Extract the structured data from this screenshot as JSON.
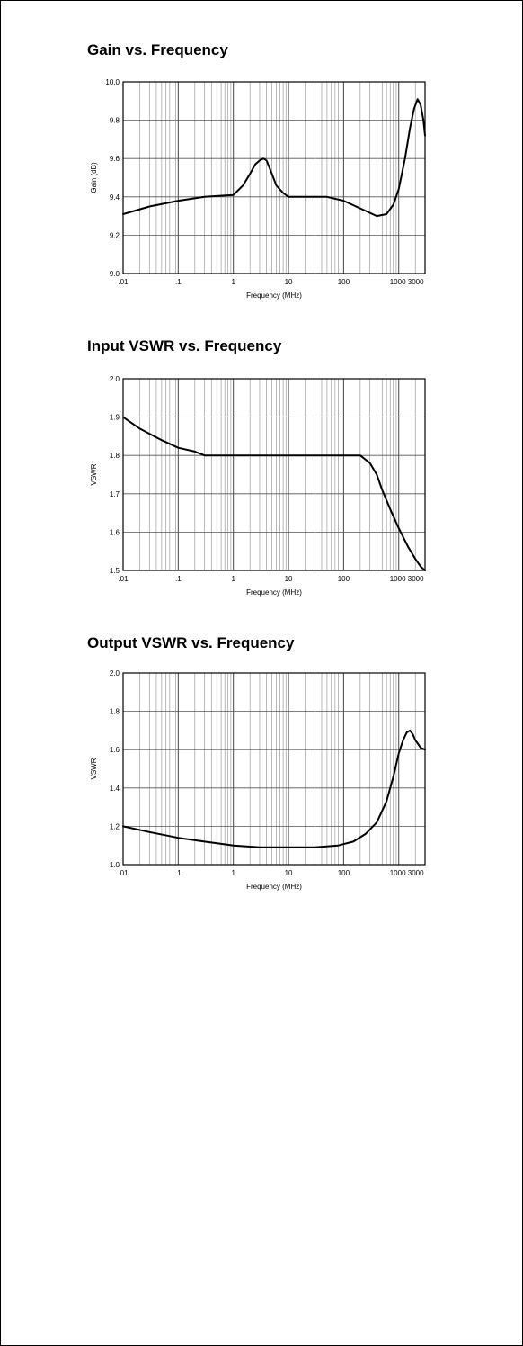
{
  "chart_data": [
    {
      "type": "line",
      "title": "Gain vs. Frequency",
      "xlabel": "Frequency (MHz)",
      "ylabel": "Gain (dB)",
      "xscale": "log",
      "xlim": [
        0.01,
        3000
      ],
      "ylim": [
        9.0,
        10.0
      ],
      "x_tick_labels": [
        ".01",
        ".1",
        "1",
        "10",
        "100",
        "1000 3000"
      ],
      "y_tick_labels": [
        "9.0",
        "9.2",
        "9.4",
        "9.6",
        "9.8",
        "10.0"
      ],
      "grid": true,
      "x": [
        0.01,
        0.03,
        0.1,
        0.3,
        1,
        1.5,
        2,
        2.5,
        3,
        3.5,
        4,
        5,
        6,
        8,
        10,
        20,
        50,
        100,
        200,
        400,
        600,
        800,
        1000,
        1300,
        1600,
        1900,
        2200,
        2500,
        2800,
        3000
      ],
      "y": [
        9.31,
        9.35,
        9.38,
        9.4,
        9.41,
        9.46,
        9.52,
        9.57,
        9.59,
        9.6,
        9.59,
        9.52,
        9.46,
        9.42,
        9.4,
        9.4,
        9.4,
        9.38,
        9.34,
        9.3,
        9.31,
        9.36,
        9.44,
        9.6,
        9.76,
        9.86,
        9.91,
        9.88,
        9.8,
        9.72
      ]
    },
    {
      "type": "line",
      "title": "Input VSWR vs. Frequency",
      "xlabel": "Frequency (MHz)",
      "ylabel": "VSWR",
      "xscale": "log",
      "xlim": [
        0.01,
        3000
      ],
      "ylim": [
        1.5,
        2.0
      ],
      "x_tick_labels": [
        ".01",
        ".1",
        "1",
        "10",
        "100",
        "1000 3000"
      ],
      "y_tick_labels": [
        "1.5",
        "1.6",
        "1.7",
        "1.8",
        "1.9",
        "2.0"
      ],
      "grid": true,
      "x": [
        0.01,
        0.02,
        0.05,
        0.1,
        0.2,
        0.3,
        0.5,
        1,
        10,
        100,
        200,
        300,
        400,
        500,
        700,
        1000,
        1500,
        2000,
        2500,
        3000
      ],
      "y": [
        1.9,
        1.87,
        1.84,
        1.82,
        1.81,
        1.8,
        1.8,
        1.8,
        1.8,
        1.8,
        1.8,
        1.78,
        1.75,
        1.71,
        1.66,
        1.61,
        1.56,
        1.53,
        1.51,
        1.5
      ]
    },
    {
      "type": "line",
      "title": "Output VSWR vs. Frequency",
      "xlabel": "Frequency (MHz)",
      "ylabel": "VSWR",
      "xscale": "log",
      "xlim": [
        0.01,
        3000
      ],
      "ylim": [
        1.0,
        2.0
      ],
      "x_tick_labels": [
        ".01",
        ".1",
        "1",
        "10",
        "100",
        "1000 3000"
      ],
      "y_tick_labels": [
        "1.0",
        "1.2",
        "1.4",
        "1.6",
        "1.8",
        "2.0"
      ],
      "grid": true,
      "x": [
        0.01,
        0.03,
        0.1,
        0.3,
        1,
        3,
        10,
        30,
        80,
        150,
        250,
        400,
        600,
        800,
        1000,
        1200,
        1400,
        1600,
        1800,
        2000,
        2500,
        3000
      ],
      "y": [
        1.2,
        1.17,
        1.14,
        1.12,
        1.1,
        1.09,
        1.09,
        1.09,
        1.1,
        1.12,
        1.16,
        1.22,
        1.33,
        1.46,
        1.58,
        1.65,
        1.69,
        1.7,
        1.68,
        1.65,
        1.61,
        1.6
      ]
    }
  ]
}
